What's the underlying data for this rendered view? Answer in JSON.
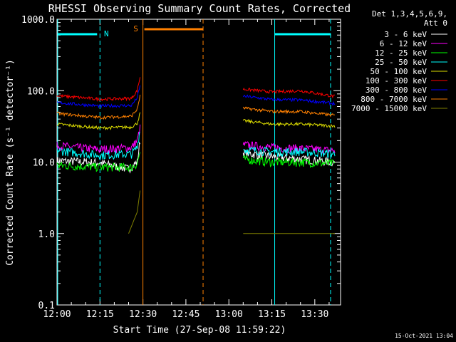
{
  "chart_data": {
    "type": "line",
    "title": "RHESSI Observing Summary Count Rates, Corrected",
    "xlabel": "Start Time (27-Sep-08 11:59:22)",
    "ylabel": "Corrected Count Rate (s⁻¹ detector⁻¹)",
    "y_scale": "log",
    "xlim": [
      "12:00",
      "13:39"
    ],
    "ylim": [
      0.1,
      1000
    ],
    "x_ticks": [
      "12:00",
      "12:15",
      "12:30",
      "12:45",
      "13:00",
      "13:15",
      "13:30"
    ],
    "y_ticks": [
      "0.1",
      "1.0",
      "10.0",
      "100.0",
      "1000.0"
    ],
    "legend_header": [
      "Det 1,3,4,5,6,9,",
      "Att 0"
    ],
    "legend_position": "right",
    "series": [
      {
        "name": "3 - 6 keV",
        "color": "#ffffff",
        "data": [
          [
            "12:00",
            10.5
          ],
          [
            "12:15",
            9.8
          ],
          [
            "12:25",
            8.0
          ],
          [
            "12:28",
            10.0
          ],
          [
            "12:29",
            20.0
          ],
          [
            "13:05",
            13.5
          ],
          [
            "13:15",
            12.0
          ],
          [
            "13:25",
            11.0
          ],
          [
            "13:37",
            10.0
          ]
        ]
      },
      {
        "name": "6 - 12 keV",
        "color": "#ff00ff",
        "data": [
          [
            "12:00",
            17.0
          ],
          [
            "12:15",
            15.0
          ],
          [
            "12:26",
            16.0
          ],
          [
            "12:28",
            20.0
          ],
          [
            "12:29",
            30.0
          ],
          [
            "13:05",
            17.5
          ],
          [
            "13:15",
            16.0
          ],
          [
            "13:25",
            15.5
          ],
          [
            "13:37",
            14.5
          ]
        ]
      },
      {
        "name": "12 - 25 keV",
        "color": "#00ff00",
        "data": [
          [
            "12:00",
            9.0
          ],
          [
            "12:15",
            8.5
          ],
          [
            "12:26",
            8.5
          ],
          [
            "12:28",
            9.5
          ],
          [
            "12:29",
            14.0
          ],
          [
            "13:05",
            11.0
          ],
          [
            "13:15",
            10.0
          ],
          [
            "13:25",
            10.0
          ],
          [
            "13:37",
            9.5
          ]
        ]
      },
      {
        "name": "25 - 50 keV",
        "color": "#00ffff",
        "data": [
          [
            "12:00",
            14.5
          ],
          [
            "12:15",
            12.5
          ],
          [
            "12:26",
            13.0
          ],
          [
            "12:28",
            16.0
          ],
          [
            "12:29",
            30.0
          ],
          [
            "13:05",
            15.0
          ],
          [
            "13:15",
            14.0
          ],
          [
            "13:25",
            14.0
          ],
          [
            "13:37",
            13.0
          ]
        ]
      },
      {
        "name": "50 - 100 keV",
        "color": "#dddd00",
        "data": [
          [
            "12:00",
            34.0
          ],
          [
            "12:15",
            30.0
          ],
          [
            "12:26",
            31.0
          ],
          [
            "12:28",
            35.0
          ],
          [
            "12:29",
            48.0
          ],
          [
            "13:05",
            38.0
          ],
          [
            "13:15",
            34.0
          ],
          [
            "13:25",
            34.0
          ],
          [
            "13:37",
            32.0
          ]
        ]
      },
      {
        "name": "100 - 300 keV",
        "color": "#ff0000",
        "data": [
          [
            "12:00",
            85.0
          ],
          [
            "12:15",
            76.0
          ],
          [
            "12:26",
            78.0
          ],
          [
            "12:28",
            100.0
          ],
          [
            "12:29",
            155.0
          ],
          [
            "13:05",
            105.0
          ],
          [
            "13:15",
            96.0
          ],
          [
            "13:25",
            100.0
          ],
          [
            "13:37",
            83.0
          ]
        ]
      },
      {
        "name": "300 - 800 keV",
        "color": "#0000ff",
        "data": [
          [
            "12:00",
            68.0
          ],
          [
            "12:15",
            61.0
          ],
          [
            "12:26",
            62.0
          ],
          [
            "12:28",
            80.0
          ],
          [
            "12:29",
            115.0
          ],
          [
            "13:05",
            84.0
          ],
          [
            "13:15",
            75.0
          ],
          [
            "13:25",
            74.0
          ],
          [
            "13:37",
            66.0
          ]
        ]
      },
      {
        "name": "800 - 7000 keV",
        "color": "#ff8000",
        "data": [
          [
            "12:00",
            48.0
          ],
          [
            "12:15",
            42.0
          ],
          [
            "12:26",
            44.0
          ],
          [
            "12:28",
            55.0
          ],
          [
            "12:29",
            85.0
          ],
          [
            "13:05",
            57.0
          ],
          [
            "13:15",
            51.0
          ],
          [
            "13:25",
            51.0
          ],
          [
            "13:37",
            45.0
          ]
        ]
      },
      {
        "name": "7000 - 15000 keV",
        "color": "#808000",
        "data": [
          [
            "12:00",
            1.0
          ],
          [
            "12:25",
            1.0
          ],
          [
            "12:28",
            2.0
          ],
          [
            "12:29",
            4.0
          ],
          [
            "13:05",
            1.0
          ],
          [
            "13:15",
            1.0
          ],
          [
            "13:25",
            1.0
          ],
          [
            "13:37",
            1.0
          ]
        ]
      }
    ],
    "annotations": [
      {
        "label": "N",
        "color": "#00ffff",
        "x_start": "12:15",
        "x_end": "13:16"
      },
      {
        "label": "S",
        "color": "#ff8000",
        "x_start": "12:30",
        "x_end": "12:51"
      }
    ],
    "footer_date": "15-Oct-2021 13:04"
  }
}
